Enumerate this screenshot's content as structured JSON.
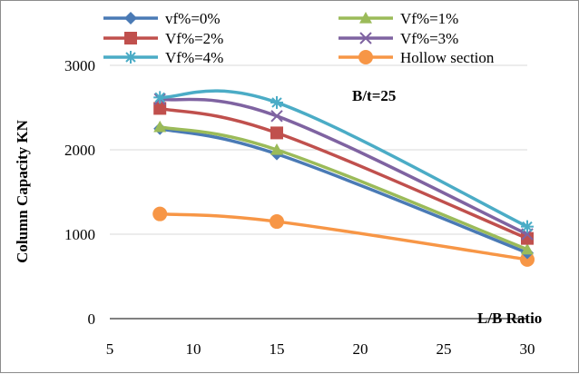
{
  "chart_data": {
    "type": "line",
    "title": "",
    "xlabel": "L/B Ratio",
    "ylabel": "Column Capacity KN",
    "annotation": "B/t=25",
    "xlim": [
      5,
      30
    ],
    "ylim": [
      0,
      3000
    ],
    "x_ticks": [
      5,
      10,
      15,
      20,
      25,
      30
    ],
    "y_ticks": [
      0,
      1000,
      2000,
      3000
    ],
    "grid": "horizontal",
    "legend_position": "top",
    "series": [
      {
        "name": "vf%=0%",
        "color": "#4a7ab5",
        "marker": "diamond",
        "x": [
          8,
          15,
          30
        ],
        "y": [
          2250,
          1950,
          780
        ]
      },
      {
        "name": "Vf%=1%",
        "color": "#9bbb59",
        "marker": "triangle",
        "x": [
          8,
          15,
          30
        ],
        "y": [
          2270,
          2000,
          820
        ]
      },
      {
        "name": "Vf%=2%",
        "color": "#c0504d",
        "marker": "square",
        "x": [
          8,
          15,
          30
        ],
        "y": [
          2490,
          2200,
          950
        ]
      },
      {
        "name": "Vf%=3%",
        "color": "#7f63a1",
        "marker": "x",
        "x": [
          8,
          15,
          30
        ],
        "y": [
          2600,
          2400,
          1000
        ]
      },
      {
        "name": "Vf%=4%",
        "color": "#4bacc6",
        "marker": "star",
        "x": [
          8,
          15,
          30
        ],
        "y": [
          2620,
          2560,
          1090
        ]
      },
      {
        "name": "Hollow section",
        "color": "#f79646",
        "marker": "circle",
        "x": [
          8,
          15,
          30
        ],
        "y": [
          1240,
          1150,
          700
        ]
      }
    ]
  }
}
